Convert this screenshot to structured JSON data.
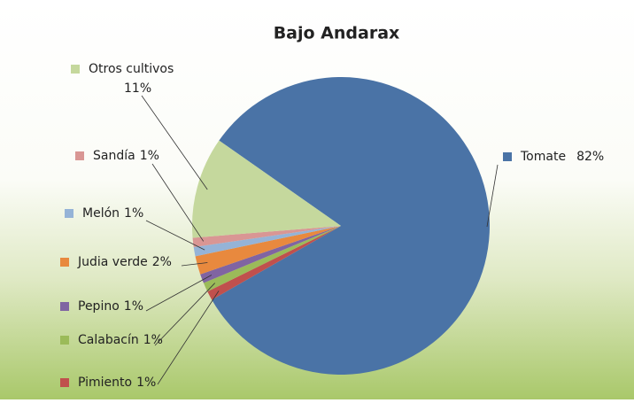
{
  "chart_data": {
    "type": "pie",
    "title": "Bajo Andarax",
    "categories": [
      "Tomate",
      "Pimiento",
      "Calabacín",
      "Pepino",
      "Judia verde",
      "Melón",
      "Sandía",
      "Otros cultivos"
    ],
    "values": [
      82,
      1,
      1,
      1,
      2,
      1,
      1,
      11
    ],
    "value_labels": [
      "82%",
      "1%",
      "1%",
      "1%",
      "2%",
      "1%",
      "1%",
      "11%"
    ],
    "colors": [
      "#4a73a6",
      "#c0504d",
      "#9bbb59",
      "#8064a2",
      "#e8893e",
      "#95b3d7",
      "#d99694",
      "#c5d89d"
    ]
  }
}
